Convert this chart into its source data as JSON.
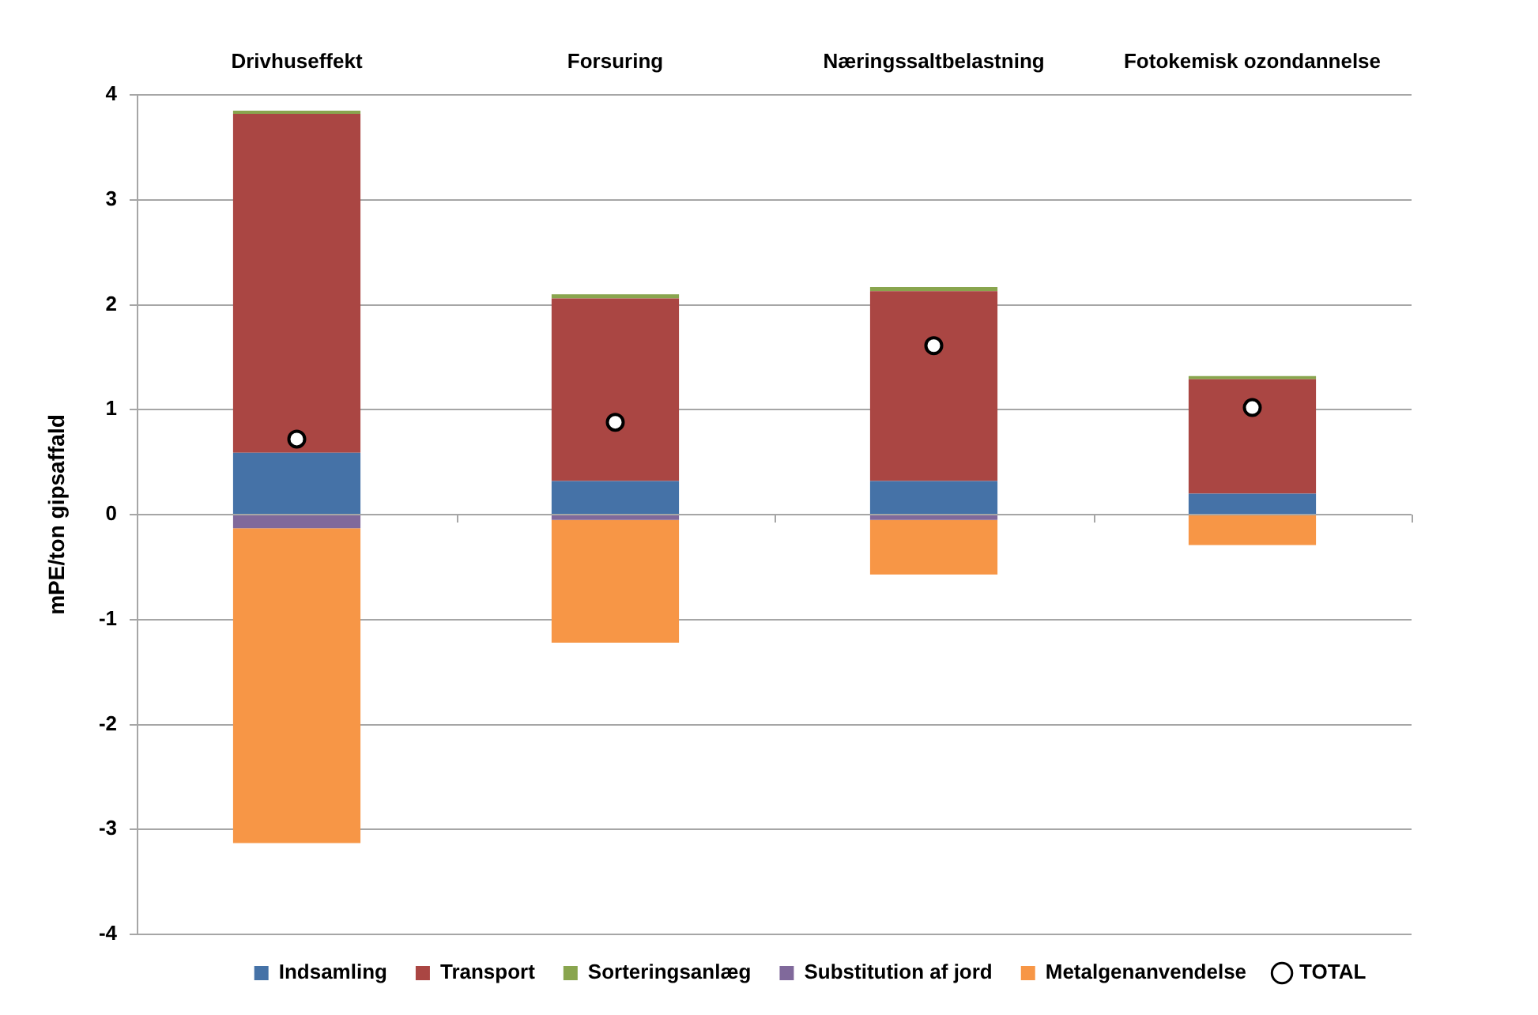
{
  "chart_data": {
    "type": "bar",
    "categories": [
      "Drivhuseffekt",
      "Forsuring",
      "Næringssaltbelastning",
      "Fotokemisk ozondannelse"
    ],
    "series": [
      {
        "name": "Indsamling",
        "color": "#4572a7",
        "values": [
          0.59,
          0.32,
          0.32,
          0.2
        ]
      },
      {
        "name": "Transport",
        "color": "#aa4643",
        "values": [
          3.23,
          1.74,
          1.81,
          1.09
        ]
      },
      {
        "name": "Sorteringsanlæg",
        "color": "#89a54e",
        "values": [
          0.03,
          0.04,
          0.04,
          0.03
        ]
      },
      {
        "name": "Substitution af jord",
        "color": "#80699b",
        "values": [
          -0.13,
          -0.05,
          -0.05,
          null
        ]
      },
      {
        "name": "Metalgenanvendelse",
        "color": "#f79646",
        "values": [
          -3.0,
          -1.17,
          -0.52,
          -0.29
        ]
      },
      {
        "name": "TOTAL",
        "type": "scatter",
        "color": "#ffffff",
        "marker": "circle",
        "values": [
          0.72,
          0.88,
          1.61,
          1.02
        ]
      }
    ],
    "stacked": true,
    "ylabel": "mPE/ton gipsaffald",
    "ylim": [
      -4,
      4
    ],
    "yticks": [
      -4,
      -3,
      -2,
      -1,
      0,
      1,
      2,
      3,
      4
    ],
    "grid": "y",
    "legend": "bottom"
  }
}
